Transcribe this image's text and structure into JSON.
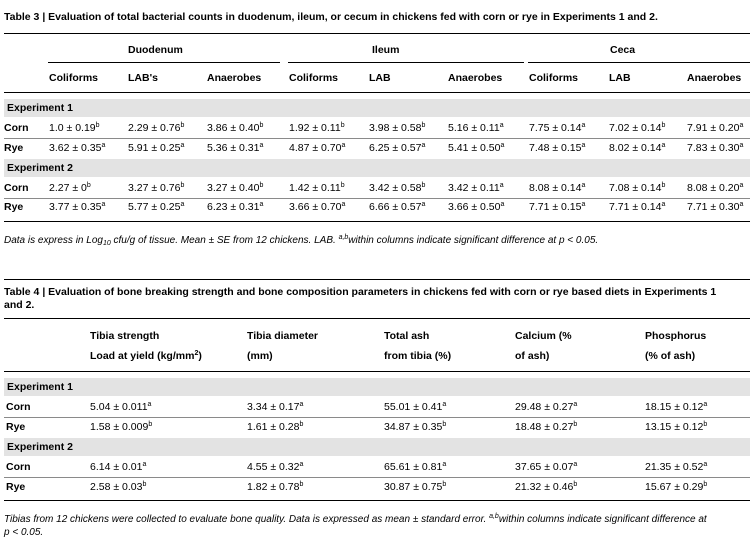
{
  "table3": {
    "title": "Table 3 | Evaluation of total bacterial counts in duodenum, ileum, or cecum in chickens fed with corn or rye in Experiments 1 and 2.",
    "groups": [
      "Duodenum",
      "Ileum",
      "Ceca"
    ],
    "columns": [
      "Coliforms",
      "LAB's",
      "Anaerobes",
      "Coliforms",
      "LAB",
      "Anaerobes",
      "Coliforms",
      "LAB",
      "Anaerobes"
    ],
    "sections": [
      {
        "label": "Experiment 1",
        "rows": [
          {
            "label": "Corn",
            "cells": [
              {
                "v": "1.0 ± 0.19",
                "s": "b"
              },
              {
                "v": "2.29 ± 0.76",
                "s": "b"
              },
              {
                "v": "3.86 ± 0.40",
                "s": "b"
              },
              {
                "v": "1.92 ± 0.11",
                "s": "b"
              },
              {
                "v": "3.98 ± 0.58",
                "s": "b"
              },
              {
                "v": "5.16 ± 0.11",
                "s": "a"
              },
              {
                "v": "7.75 ± 0.14",
                "s": "a"
              },
              {
                "v": "7.02 ± 0.14",
                "s": "b"
              },
              {
                "v": "7.91 ± 0.20",
                "s": "a"
              }
            ]
          },
          {
            "label": "Rye",
            "cells": [
              {
                "v": "3.62 ± 0.35",
                "s": "a"
              },
              {
                "v": "5.91 ± 0.25",
                "s": "a"
              },
              {
                "v": "5.36 ± 0.31",
                "s": "a"
              },
              {
                "v": "4.87 ± 0.70",
                "s": "a"
              },
              {
                "v": "6.25 ± 0.57",
                "s": "a"
              },
              {
                "v": "5.41 ± 0.50",
                "s": "a"
              },
              {
                "v": "7.48 ± 0.15",
                "s": "a"
              },
              {
                "v": "8.02 ± 0.14",
                "s": "a"
              },
              {
                "v": "7.83 ± 0.30",
                "s": "a"
              }
            ]
          }
        ]
      },
      {
        "label": "Experiment 2",
        "rows": [
          {
            "label": "Corn",
            "cells": [
              {
                "v": "2.27 ± 0",
                "s": "b"
              },
              {
                "v": "3.27 ± 0.76",
                "s": "b"
              },
              {
                "v": "3.27 ± 0.40",
                "s": "b"
              },
              {
                "v": "1.42 ± 0.11",
                "s": "b"
              },
              {
                "v": "3.42 ± 0.58",
                "s": "b"
              },
              {
                "v": "3.42 ± 0.11",
                "s": "a"
              },
              {
                "v": "8.08 ± 0.14",
                "s": "a"
              },
              {
                "v": "7.08 ± 0.14",
                "s": "b"
              },
              {
                "v": "8.08 ± 0.20",
                "s": "a"
              }
            ]
          },
          {
            "label": "Rye",
            "cells": [
              {
                "v": "3.77 ± 0.35",
                "s": "a"
              },
              {
                "v": "5.77 ± 0.25",
                "s": "a"
              },
              {
                "v": "6.23 ± 0.31",
                "s": "a"
              },
              {
                "v": "3.66 ± 0.70",
                "s": "a"
              },
              {
                "v": "6.66 ± 0.57",
                "s": "a"
              },
              {
                "v": "3.66 ± 0.50",
                "s": "a"
              },
              {
                "v": "7.71 ± 0.15",
                "s": "a"
              },
              {
                "v": "7.71 ± 0.14",
                "s": "a"
              },
              {
                "v": "7.71 ± 0.30",
                "s": "a"
              }
            ]
          }
        ]
      }
    ],
    "footnote": {
      "part1": "Data is express in Log",
      "sub": "10",
      "part2": " cfu/g of tissue. Mean ± SE from 12 chickens. LAB. ",
      "sup": "a,b",
      "part3": "within columns indicate significant difference at p < 0.05."
    }
  },
  "table4": {
    "title_line1": "Table 4 | Evaluation of bone breaking strength and bone composition parameters in chickens fed with corn or rye based diets in Experiments 1",
    "title_line2": "and 2.",
    "columns": [
      {
        "line1": "Tibia strength",
        "line2": "Load at yield (kg/mm",
        "sup": "2",
        "tail": ")"
      },
      {
        "line1": "Tibia diameter",
        "line2": "(mm)",
        "sup": "",
        "tail": ""
      },
      {
        "line1": "Total ash",
        "line2": "from tibia (%)",
        "sup": "",
        "tail": ""
      },
      {
        "line1": "Calcium (%",
        "line2": "of ash)",
        "sup": "",
        "tail": ""
      },
      {
        "line1": "Phosphorus",
        "line2": "(% of ash)",
        "sup": "",
        "tail": ""
      }
    ],
    "sections": [
      {
        "label": "Experiment 1",
        "rows": [
          {
            "label": "Corn",
            "cells": [
              {
                "v": "5.04 ± 0.011",
                "s": "a"
              },
              {
                "v": "3.34 ± 0.17",
                "s": "a"
              },
              {
                "v": "55.01 ± 0.41",
                "s": "a"
              },
              {
                "v": "29.48 ± 0.27",
                "s": "a"
              },
              {
                "v": "18.15 ± 0.12",
                "s": "a"
              }
            ]
          },
          {
            "label": "Rye",
            "cells": [
              {
                "v": "1.58 ± 0.009",
                "s": "b"
              },
              {
                "v": "1.61 ± 0.28",
                "s": "b"
              },
              {
                "v": "34.87 ± 0.35",
                "s": "b"
              },
              {
                "v": "18.48 ± 0.27",
                "s": "b"
              },
              {
                "v": "13.15 ± 0.12",
                "s": "b"
              }
            ]
          }
        ]
      },
      {
        "label": "Experiment 2",
        "rows": [
          {
            "label": "Corn",
            "cells": [
              {
                "v": "6.14 ± 0.01",
                "s": "a"
              },
              {
                "v": "4.55 ± 0.32",
                "s": "a"
              },
              {
                "v": "65.61 ± 0.81",
                "s": "a"
              },
              {
                "v": "37.65 ± 0.07",
                "s": "a"
              },
              {
                "v": "21.35 ± 0.52",
                "s": "a"
              }
            ]
          },
          {
            "label": "Rye",
            "cells": [
              {
                "v": "2.58 ± 0.03",
                "s": "b"
              },
              {
                "v": "1.82 ± 0.78",
                "s": "b"
              },
              {
                "v": "30.87 ± 0.75",
                "s": "b"
              },
              {
                "v": "21.32 ± 0.46",
                "s": "b"
              },
              {
                "v": "15.67 ± 0.29",
                "s": "b"
              }
            ]
          }
        ]
      }
    ],
    "footnote": {
      "part1": "Tibias from 12 chickens were collected to evaluate bone quality. Data is expressed as mean ± standard error. ",
      "sup": "a,b",
      "part2": "within columns indicate significant difference at",
      "line2": "p < 0.05."
    }
  }
}
